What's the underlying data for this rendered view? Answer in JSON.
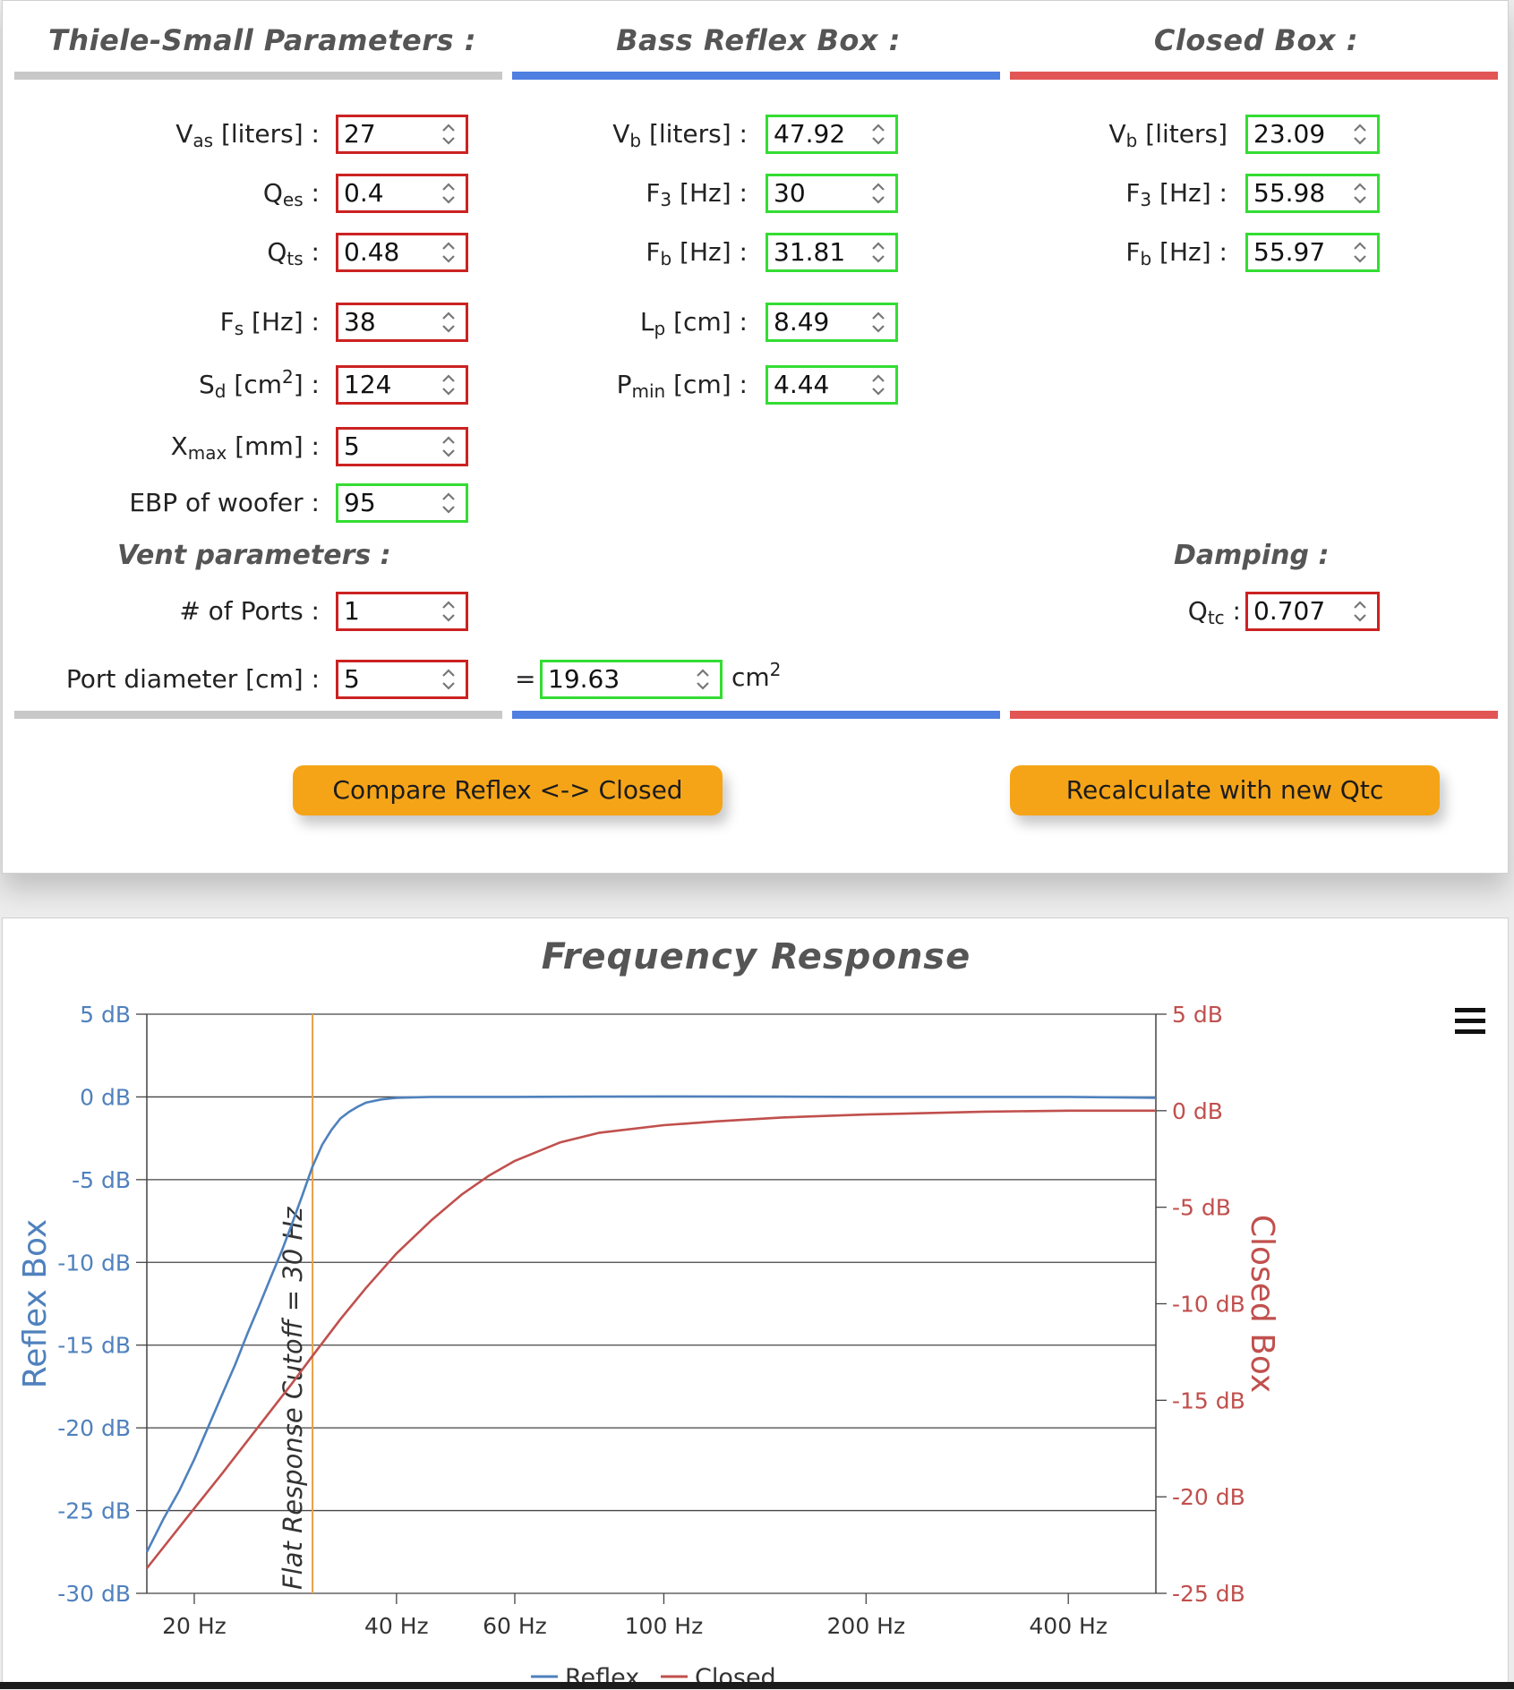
{
  "sections": {
    "ts_title": "Thiele-Small Parameters :",
    "reflex_title": "Bass Reflex Box :",
    "closed_title": "Closed Box :"
  },
  "ts_params": [
    {
      "main": "V",
      "sub": "as",
      "rest": " [liters] :",
      "value": "27",
      "state": "input"
    },
    {
      "main": "Q",
      "sub": "es",
      "rest": " :",
      "value": "0.4",
      "state": "input"
    },
    {
      "main": "Q",
      "sub": "ts",
      "rest": " :",
      "value": "0.48",
      "state": "input"
    },
    {
      "main": "F",
      "sub": "s",
      "rest": " [Hz] :",
      "value": "38",
      "state": "input"
    },
    {
      "main": "S",
      "sub": "d",
      "rest": " [cm",
      "sup": "2",
      "rest2": "] :",
      "value": "124",
      "state": "input"
    },
    {
      "main": "X",
      "sub": "max",
      "rest": " [mm] :",
      "value": "5",
      "state": "input"
    },
    {
      "main": "EBP of woofer :",
      "value": "95",
      "state": "output"
    }
  ],
  "reflex_params": [
    {
      "main": "V",
      "sub": "b",
      "rest": " [liters] :",
      "value": "47.92"
    },
    {
      "main": "F",
      "sub": "3",
      "rest": " [Hz] :",
      "value": "30"
    },
    {
      "main": "F",
      "sub": "b",
      "rest": " [Hz] :",
      "value": "31.81"
    },
    {
      "main": "L",
      "sub": "p",
      "rest": " [cm] :",
      "value": "8.49"
    },
    {
      "main": "P",
      "sub": "min",
      "rest": " [cm] :",
      "value": "4.44"
    }
  ],
  "closed_params": [
    {
      "main": "V",
      "sub": "b",
      "rest": " [liters]",
      "value": "23.09"
    },
    {
      "main": "F",
      "sub": "3",
      "rest": " [Hz] :",
      "value": "55.98"
    },
    {
      "main": "F",
      "sub": "b",
      "rest": " [Hz] :",
      "value": "55.97"
    }
  ],
  "vent": {
    "title": "Vent parameters :",
    "ports_label": "# of Ports :",
    "ports_value": "1",
    "diameter_label": "Port diameter [cm] :",
    "diameter_value": "5",
    "equals": "=",
    "area_value": "19.63",
    "area_unit": "cm",
    "area_unit_sup": "2"
  },
  "damping": {
    "title": "Damping :",
    "qtc_main": "Q",
    "qtc_sub": "tc",
    "qtc_rest": " :",
    "qtc_value": "0.707"
  },
  "buttons": {
    "compare": "Compare Reflex <-> Closed",
    "recalc": "Recalculate with new Qtc"
  },
  "colors": {
    "reflex": "#4f81bd",
    "closed": "#c0504d",
    "cutoff": "#e8a046",
    "input_border": "#cc2222",
    "output_border": "#33dd33",
    "button": "#f5a418"
  },
  "icons": {
    "spinner": "spinner-arrows-icon",
    "menu": "hamburger-menu-icon"
  },
  "chart_data": {
    "type": "line",
    "title": "Frequency Response",
    "x_scale": "log",
    "xlim": [
      17,
      540
    ],
    "x_ticks": [
      20,
      40,
      60,
      100,
      200,
      400
    ],
    "x_tick_labels": [
      "20 Hz",
      "40 Hz",
      "60 Hz",
      "100 Hz",
      "200 Hz",
      "400 Hz"
    ],
    "y_left": {
      "label": "Reflex Box",
      "lim": [
        -30,
        5
      ],
      "ticks": [
        5,
        0,
        -5,
        -10,
        -15,
        -20,
        -25,
        -30
      ],
      "tick_labels": [
        "5 dB",
        "0 dB",
        "-5 dB",
        "-10 dB",
        "-15 dB",
        "-20 dB",
        "-25 dB",
        "-30 dB"
      ]
    },
    "y_right": {
      "label": "Closed Box",
      "lim": [
        -25,
        5
      ],
      "ticks": [
        5,
        0,
        -5,
        -10,
        -15,
        -20,
        -25
      ],
      "tick_labels": [
        "5 dB",
        "0 dB",
        "-5 dB",
        "-10 dB",
        "-15 dB",
        "-20 dB",
        "-25 dB"
      ]
    },
    "grid": true,
    "cutoff": {
      "x": 30,
      "label": "Flat Response Cutoff = 30 Hz"
    },
    "series": [
      {
        "name": "Reflex",
        "axis": "left",
        "x": [
          17,
          18,
          19,
          20,
          21,
          22,
          23,
          24,
          25,
          26,
          27,
          28,
          29,
          30,
          31,
          32,
          33,
          34,
          35,
          36,
          38,
          40,
          45,
          50,
          60,
          80,
          100,
          150,
          200,
          300,
          400,
          540
        ],
        "y": [
          -27.5,
          -25.5,
          -23.8,
          -21.9,
          -19.9,
          -18,
          -16.2,
          -14.3,
          -12.6,
          -10.9,
          -9.3,
          -7.6,
          -5.9,
          -4.2,
          -2.9,
          -2,
          -1.3,
          -0.9,
          -0.6,
          -0.35,
          -0.15,
          -0.05,
          0,
          0,
          0,
          0.02,
          0.03,
          0.02,
          0,
          0,
          0,
          -0.05
        ]
      },
      {
        "name": "Closed",
        "axis": "right",
        "x": [
          17,
          20,
          22,
          25,
          28,
          30,
          33,
          36,
          40,
          45,
          50,
          55,
          60,
          70,
          80,
          100,
          120,
          150,
          200,
          300,
          400,
          540
        ],
        "y": [
          -23.7,
          -20.6,
          -18.8,
          -16.3,
          -14.1,
          -12.7,
          -10.8,
          -9.2,
          -7.4,
          -5.7,
          -4.35,
          -3.35,
          -2.6,
          -1.65,
          -1.15,
          -0.75,
          -0.55,
          -0.35,
          -0.2,
          -0.05,
          0,
          0
        ]
      }
    ]
  }
}
